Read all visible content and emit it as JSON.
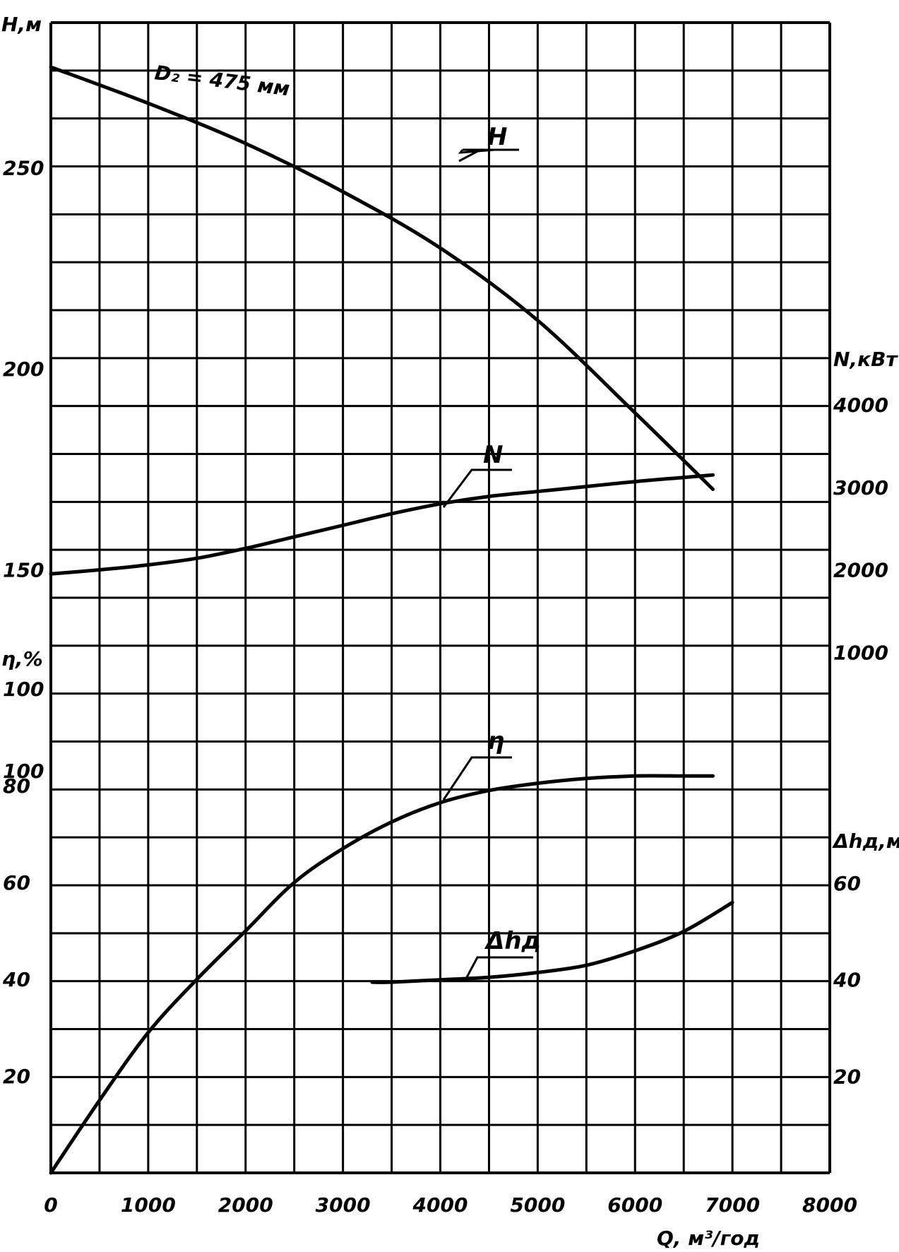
{
  "chart_data": {
    "type": "line",
    "x_axis": {
      "label": "Q, м³/год",
      "range": [
        0,
        8000
      ],
      "ticks": [
        0,
        1000,
        2000,
        3000,
        4000,
        5000,
        6000,
        7000,
        8000
      ],
      "tick_labels": [
        "0",
        "1000",
        "2000",
        "3000",
        "4000",
        "5000",
        "6000",
        "7000",
        "8000"
      ],
      "grid_step": 500
    },
    "axes": {
      "H": {
        "label": "H,м",
        "side": "left",
        "range": [
          0,
          275
        ],
        "ticks": [
          250,
          200,
          150,
          100
        ],
        "tick_labels": [
          "250",
          "200",
          "150",
          "100"
        ]
      },
      "eta": {
        "label": "η,%",
        "side": "left",
        "range": [
          0,
          115
        ],
        "ticks": [
          100,
          80,
          60,
          40,
          20
        ],
        "tick_labels": [
          "100",
          "80",
          "60",
          "40",
          "20"
        ]
      },
      "N": {
        "label": "N,кВт",
        "side": "right",
        "range": [
          0,
          5000
        ],
        "ticks": [
          4000,
          3000,
          2000,
          1000
        ],
        "tick_labels": [
          "4000",
          "3000",
          "2000",
          "1000"
        ]
      },
      "dh": {
        "label": "Δhд,м",
        "side": "right",
        "range": [
          0,
          115
        ],
        "ticks": [
          60,
          40,
          20
        ],
        "tick_labels": [
          "60",
          "40",
          "20"
        ]
      }
    },
    "grid": true,
    "annotation": "D₂ = 475 мм",
    "series": [
      {
        "name": "H",
        "axis": "H",
        "x": [
          0,
          1000,
          2000,
          3000,
          4000,
          5000,
          6000,
          6800
        ],
        "y": [
          275,
          266,
          256,
          244,
          230,
          212,
          189,
          170
        ]
      },
      {
        "name": "N",
        "axis": "N",
        "x": [
          0,
          500,
          1000,
          1500,
          2000,
          2500,
          3000,
          3500,
          4000,
          4500,
          5000,
          5500,
          6000,
          6500,
          6800
        ],
        "y": [
          1950,
          2000,
          2060,
          2140,
          2260,
          2400,
          2540,
          2680,
          2800,
          2890,
          2950,
          3010,
          3070,
          3120,
          3150
        ]
      },
      {
        "name": "η",
        "axis": "eta",
        "x": [
          0,
          500,
          1000,
          1500,
          2000,
          2500,
          3000,
          3500,
          4000,
          4500,
          5000,
          5500,
          6000,
          6500,
          6800
        ],
        "y": [
          0,
          15,
          29,
          40,
          50,
          60,
          67,
          72.5,
          76.5,
          79,
          80.5,
          81.5,
          82,
          82,
          82
        ]
      },
      {
        "name": "Δhд",
        "axis": "dh",
        "x": [
          3300,
          3500,
          4000,
          4500,
          5000,
          5500,
          6000,
          6500,
          7000
        ],
        "y": [
          39.5,
          39.5,
          40,
          40.5,
          41.5,
          43,
          46,
          50,
          56
        ]
      }
    ],
    "curve_labels": [
      "H",
      "N",
      "η",
      "Δhд"
    ]
  }
}
